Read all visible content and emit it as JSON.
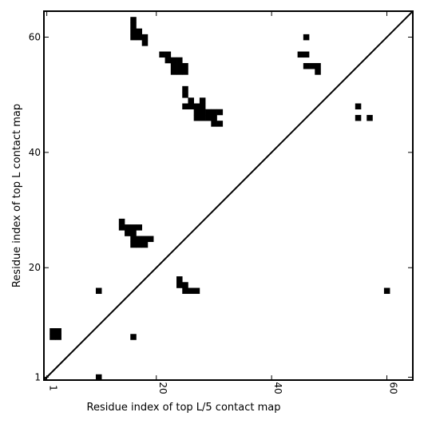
{
  "chart_data": {
    "type": "heatmap",
    "xlabel": "Residue index of top L/5 contact map",
    "ylabel": "Residue index of top L contact map",
    "xlim": [
      0.5,
      64.5
    ],
    "ylim": [
      0.5,
      64.5
    ],
    "x_ticks": [
      1,
      20,
      40,
      60
    ],
    "y_ticks": [
      1,
      20,
      40,
      60
    ],
    "diagonal_line": true,
    "cell_color": "#000000",
    "lower_triangle_cells": [
      [
        2,
        9
      ],
      [
        2,
        8
      ],
      [
        3,
        9
      ],
      [
        3,
        8
      ],
      [
        10,
        1
      ],
      [
        10,
        16
      ],
      [
        16,
        8
      ],
      [
        14,
        28
      ],
      [
        14,
        27
      ],
      [
        15,
        27
      ],
      [
        16,
        27
      ],
      [
        17,
        27
      ],
      [
        15,
        26
      ],
      [
        16,
        26
      ],
      [
        16,
        25
      ],
      [
        17,
        25
      ],
      [
        18,
        25
      ],
      [
        19,
        25
      ],
      [
        16,
        24
      ],
      [
        17,
        24
      ],
      [
        18,
        24
      ],
      [
        24,
        18
      ],
      [
        24,
        17
      ],
      [
        25,
        17
      ],
      [
        25,
        16
      ],
      [
        26,
        16
      ],
      [
        27,
        16
      ],
      [
        60,
        16
      ]
    ],
    "upper_triangle_cells": [
      [
        16,
        63
      ],
      [
        16,
        62
      ],
      [
        16,
        61
      ],
      [
        17,
        61
      ],
      [
        16,
        60
      ],
      [
        17,
        60
      ],
      [
        18,
        60
      ],
      [
        18,
        59
      ],
      [
        21,
        57
      ],
      [
        22,
        57
      ],
      [
        22,
        56
      ],
      [
        23,
        56
      ],
      [
        24,
        56
      ],
      [
        23,
        55
      ],
      [
        24,
        55
      ],
      [
        25,
        55
      ],
      [
        23,
        54
      ],
      [
        24,
        54
      ],
      [
        25,
        54
      ],
      [
        25,
        51
      ],
      [
        25,
        50
      ],
      [
        26,
        49
      ],
      [
        28,
        49
      ],
      [
        25,
        48
      ],
      [
        26,
        48
      ],
      [
        27,
        48
      ],
      [
        28,
        48
      ],
      [
        27,
        47
      ],
      [
        28,
        47
      ],
      [
        29,
        47
      ],
      [
        30,
        47
      ],
      [
        31,
        47
      ],
      [
        27,
        46
      ],
      [
        28,
        46
      ],
      [
        29,
        46
      ],
      [
        30,
        46
      ],
      [
        30,
        45
      ],
      [
        31,
        45
      ],
      [
        46,
        60
      ],
      [
        45,
        57
      ],
      [
        46,
        57
      ],
      [
        46,
        55
      ],
      [
        47,
        55
      ],
      [
        48,
        55
      ],
      [
        48,
        54
      ],
      [
        55,
        48
      ],
      [
        55,
        46
      ],
      [
        57,
        46
      ]
    ]
  }
}
